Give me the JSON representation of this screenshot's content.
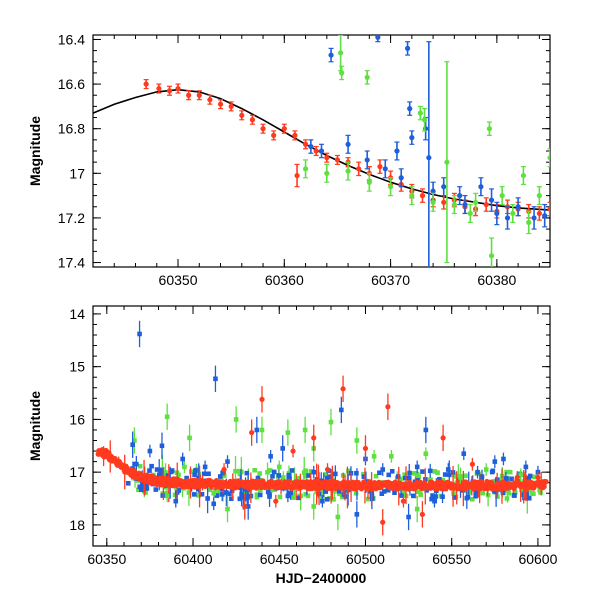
{
  "chart_data": [
    {
      "type": "scatter",
      "panel": "top",
      "title": "",
      "xlabel": "",
      "ylabel": "Magnitude",
      "xlim": [
        60342,
        60385
      ],
      "ylim": [
        17.42,
        16.38
      ],
      "y_inverted": true,
      "xticks": [
        60350,
        60360,
        60370,
        60380
      ],
      "yticks": [
        16.4,
        16.6,
        16.8,
        17,
        17.2,
        17.4
      ],
      "ytick_labels": [
        "16.4",
        "16.6",
        "16.8",
        "17",
        "17.2",
        "17.4"
      ],
      "grid": false,
      "series": [
        {
          "color": "#ff3a1f",
          "marker": "circle",
          "points": [
            [
              60347,
              16.6,
              0.02
            ],
            [
              60348.2,
              16.62,
              0.02
            ],
            [
              60349.2,
              16.63,
              0.02
            ],
            [
              60350,
              16.62,
              0.02
            ],
            [
              60351,
              16.65,
              0.02
            ],
            [
              60352,
              16.65,
              0.02
            ],
            [
              60353,
              16.67,
              0.02
            ],
            [
              60354,
              16.69,
              0.02
            ],
            [
              60355,
              16.7,
              0.02
            ],
            [
              60356,
              16.74,
              0.02
            ],
            [
              60357,
              16.76,
              0.02
            ],
            [
              60358,
              16.8,
              0.02
            ],
            [
              60359,
              16.83,
              0.02
            ],
            [
              60360,
              16.8,
              0.02
            ],
            [
              60361,
              16.83,
              0.02
            ],
            [
              60361.2,
              17.01,
              0.05
            ],
            [
              60362,
              16.87,
              0.02
            ],
            [
              60363,
              16.9,
              0.02
            ],
            [
              60364,
              16.93,
              0.02
            ],
            [
              60365,
              16.94,
              0.02
            ],
            [
              60366,
              16.95,
              0.02
            ],
            [
              60367,
              16.98,
              0.03
            ],
            [
              60368,
              17.0,
              0.03
            ],
            [
              60369,
              16.97,
              0.03
            ],
            [
              60370,
              17.02,
              0.03
            ],
            [
              60371,
              17.05,
              0.03
            ],
            [
              60372,
              17.08,
              0.03
            ],
            [
              60373,
              17.1,
              0.03
            ],
            [
              60374,
              17.12,
              0.03
            ],
            [
              60375,
              17.13,
              0.03
            ],
            [
              60376,
              17.12,
              0.03
            ],
            [
              60377,
              17.15,
              0.03
            ],
            [
              60378,
              17.16,
              0.03
            ],
            [
              60379,
              17.14,
              0.03
            ],
            [
              60380,
              17.17,
              0.03
            ],
            [
              60381,
              17.15,
              0.03
            ],
            [
              60382,
              17.16,
              0.03
            ],
            [
              60383,
              17.17,
              0.03
            ],
            [
              60384,
              17.18,
              0.03
            ],
            [
              60385,
              17.16,
              0.03
            ]
          ]
        },
        {
          "color": "#1f5fdc",
          "marker": "circle",
          "points": [
            [
              60364.4,
              16.47,
              0.03
            ],
            [
              60368.8,
              16.39,
              0.02
            ],
            [
              60371.6,
              16.44,
              0.03
            ],
            [
              60371.8,
              16.71,
              0.03
            ],
            [
              60372,
              16.84,
              0.03
            ],
            [
              60373.3,
              16.8,
              0.05
            ],
            [
              60373.6,
              16.93,
              0.52
            ],
            [
              60362.5,
              16.88,
              0.03
            ],
            [
              60363.5,
              16.9,
              0.03
            ],
            [
              60366,
              16.87,
              0.04
            ],
            [
              60367.8,
              16.94,
              0.04
            ],
            [
              60369.5,
              16.98,
              0.04
            ],
            [
              60370.6,
              16.9,
              0.04
            ],
            [
              60371,
              17.02,
              0.04
            ],
            [
              60374,
              17.08,
              0.04
            ],
            [
              60375,
              17.06,
              0.04
            ],
            [
              60376.5,
              17.1,
              0.04
            ],
            [
              60377,
              17.14,
              0.04
            ],
            [
              60378.5,
              17.06,
              0.04
            ],
            [
              60379.5,
              17.12,
              0.05
            ],
            [
              60380,
              17.18,
              0.05
            ],
            [
              60381,
              17.2,
              0.05
            ],
            [
              60382,
              17.15,
              0.04
            ],
            [
              60383.5,
              17.2,
              0.05
            ],
            [
              60384.5,
              17.19,
              0.05
            ]
          ]
        },
        {
          "color": "#5ee040",
          "marker": "circle",
          "points": [
            [
              60365.3,
              16.46,
              0.08
            ],
            [
              60365.4,
              16.55,
              0.03
            ],
            [
              60367.8,
              16.57,
              0.03
            ],
            [
              60372.8,
              16.73,
              0.03
            ],
            [
              60373.2,
              16.76,
              0.05
            ],
            [
              60375.3,
              16.95,
              0.45
            ],
            [
              60379.3,
              16.8,
              0.03
            ],
            [
              60379.5,
              17.37,
              0.08
            ],
            [
              60362,
              16.98,
              0.04
            ],
            [
              60364,
              17.0,
              0.04
            ],
            [
              60366,
              16.99,
              0.04
            ],
            [
              60368,
              17.04,
              0.04
            ],
            [
              60370,
              17.06,
              0.04
            ],
            [
              60372,
              17.1,
              0.04
            ],
            [
              60374,
              17.13,
              0.04
            ],
            [
              60376,
              17.14,
              0.04
            ],
            [
              60377.5,
              17.18,
              0.04
            ],
            [
              60378,
              17.13,
              0.04
            ],
            [
              60380.5,
              17.1,
              0.04
            ],
            [
              60381.5,
              17.18,
              0.04
            ],
            [
              60382.5,
              17.01,
              0.04
            ],
            [
              60383,
              17.22,
              0.05
            ],
            [
              60384,
              17.1,
              0.04
            ],
            [
              60385,
              16.93,
              0.04
            ]
          ]
        }
      ],
      "model_curve": {
        "color": "#000000",
        "points": [
          [
            60342,
            16.73
          ],
          [
            60344,
            16.69
          ],
          [
            60346,
            16.66
          ],
          [
            60348,
            16.635
          ],
          [
            60350,
            16.625
          ],
          [
            60352,
            16.635
          ],
          [
            60354,
            16.665
          ],
          [
            60356,
            16.71
          ],
          [
            60358,
            16.76
          ],
          [
            60360,
            16.815
          ],
          [
            60362,
            16.87
          ],
          [
            60364,
            16.92
          ],
          [
            60366,
            16.965
          ],
          [
            60368,
            17.005
          ],
          [
            60370,
            17.04
          ],
          [
            60372,
            17.07
          ],
          [
            60374,
            17.095
          ],
          [
            60376,
            17.115
          ],
          [
            60378,
            17.13
          ],
          [
            60380,
            17.145
          ],
          [
            60382,
            17.155
          ],
          [
            60385,
            17.165
          ]
        ]
      }
    },
    {
      "type": "scatter",
      "panel": "bottom",
      "title": "",
      "xlabel": "HJD−2400000",
      "ylabel": "Magnitude",
      "xlim": [
        60342,
        60607
      ],
      "ylim": [
        18.4,
        13.85
      ],
      "y_inverted": true,
      "xticks": [
        60350,
        60400,
        60450,
        60500,
        60550,
        60600
      ],
      "yticks": [
        14,
        15,
        16,
        17,
        18
      ],
      "grid": false,
      "series": [
        {
          "color": "#ff3a1f",
          "marker": "circle",
          "baseline_points": [
            [
              60345,
              16.62
            ],
            [
              60350,
              16.66
            ],
            [
              60355,
              16.78
            ],
            [
              60360,
              16.92
            ],
            [
              60365,
              17.03
            ],
            [
              60370,
              17.1
            ],
            [
              60380,
              17.17
            ],
            [
              60390,
              17.2
            ],
            [
              60400,
              17.22
            ],
            [
              60420,
              17.23
            ],
            [
              60450,
              17.24
            ],
            [
              60500,
              17.25
            ],
            [
              60550,
              17.25
            ],
            [
              60605,
              17.24
            ]
          ],
          "outliers": [
            [
              60440,
              15.62
            ],
            [
              60487,
              15.42
            ],
            [
              60513,
              15.76
            ],
            [
              60434,
              16.25
            ],
            [
              60458,
              16.6
            ],
            [
              60470,
              16.35
            ],
            [
              60510,
              17.95
            ],
            [
              60533,
              17.8
            ],
            [
              60430,
              17.65
            ],
            [
              60545,
              16.35
            ],
            [
              60562,
              16.85
            ],
            [
              60588,
              17.1
            ],
            [
              60600,
              17.1
            ],
            [
              60500,
              16.55
            ],
            [
              60418,
              16.95
            ],
            [
              60448,
              17.55
            ],
            [
              60478,
              16.95
            ],
            [
              60522,
              17.55
            ]
          ]
        },
        {
          "color": "#1f5fdc",
          "marker": "square",
          "outliers": [
            [
              60369,
              14.38
            ],
            [
              60413,
              15.23
            ],
            [
              60365,
              16.48
            ],
            [
              60375,
              16.6
            ],
            [
              60382,
              16.5
            ],
            [
              60394,
              16.75
            ],
            [
              60407,
              16.9
            ],
            [
              60437,
              16.2
            ],
            [
              60452,
              16.55
            ],
            [
              60486,
              15.82
            ],
            [
              60500,
              16.75
            ],
            [
              60535,
              16.2
            ],
            [
              60548,
              16.95
            ],
            [
              60557,
              16.65
            ],
            [
              60580,
              16.75
            ],
            [
              60593,
              16.9
            ],
            [
              60600,
              17.0
            ],
            [
              60412,
              17.6
            ],
            [
              60432,
              17.65
            ],
            [
              60455,
              17.45
            ],
            [
              60475,
              17.55
            ],
            [
              60495,
              17.8
            ],
            [
              60525,
              17.85
            ],
            [
              60540,
              17.55
            ],
            [
              60390,
              17.55
            ],
            [
              60470,
              17.0
            ],
            [
              60510,
              16.95
            ],
            [
              60565,
              17.0
            ],
            [
              60575,
              16.8
            ],
            [
              60530,
              16.9
            ],
            [
              60420,
              16.8
            ],
            [
              60445,
              16.7
            ]
          ]
        },
        {
          "color": "#5ee040",
          "marker": "square",
          "outliers": [
            [
              60366,
              16.4
            ],
            [
              60385,
              15.95
            ],
            [
              60398,
              16.35
            ],
            [
              60425,
              16.0
            ],
            [
              60440,
              16.2
            ],
            [
              60455,
              16.25
            ],
            [
              60465,
              16.2
            ],
            [
              60470,
              16.55
            ],
            [
              60480,
              16.05
            ],
            [
              60495,
              16.4
            ],
            [
              60505,
              16.7
            ],
            [
              60515,
              16.7
            ],
            [
              60535,
              16.65
            ],
            [
              60385,
              17.45
            ],
            [
              60412,
              17.4
            ],
            [
              60420,
              17.7
            ],
            [
              60470,
              17.65
            ],
            [
              60484,
              17.85
            ],
            [
              60530,
              17.7
            ],
            [
              60555,
              17.1
            ],
            [
              60570,
              16.95
            ],
            [
              60590,
              17.05
            ],
            [
              60395,
              16.9
            ],
            [
              60450,
              16.9
            ]
          ]
        }
      ]
    }
  ]
}
